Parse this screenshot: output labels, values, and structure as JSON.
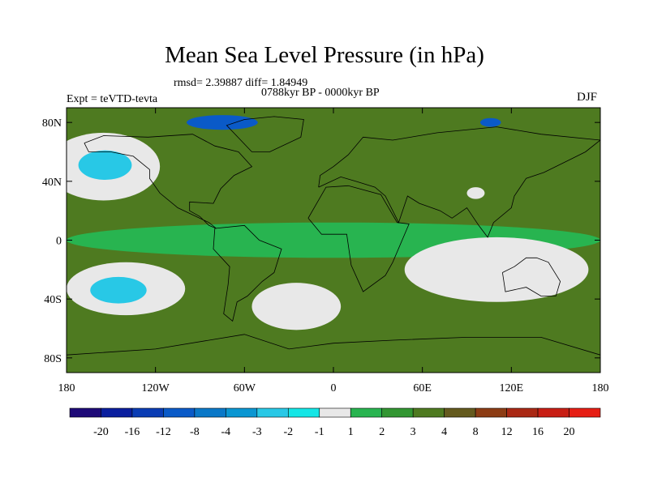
{
  "title": "Mean Sea Level Pressure (in hPa)",
  "stats_line": "rmsd= 2.39887 diff= 1.84949",
  "period_line": "0788kyr BP - 0000kyr BP",
  "expt_label": "Expt = teVTD-tevta",
  "season_label": "DJF",
  "chart_data": {
    "type": "heatmap",
    "title": "Mean Sea Level Pressure (in hPa)",
    "xlabel": "",
    "ylabel": "",
    "x_range": [
      -180,
      180
    ],
    "y_range": [
      -90,
      90
    ],
    "x_ticks": [
      {
        "value": -180,
        "label": "180"
      },
      {
        "value": -120,
        "label": "120W"
      },
      {
        "value": -60,
        "label": "60W"
      },
      {
        "value": 0,
        "label": "0"
      },
      {
        "value": 60,
        "label": "60E"
      },
      {
        "value": 120,
        "label": "120E"
      },
      {
        "value": 180,
        "label": "180"
      }
    ],
    "y_ticks": [
      {
        "value": 80,
        "label": "80N"
      },
      {
        "value": 40,
        "label": "40N"
      },
      {
        "value": 0,
        "label": "0"
      },
      {
        "value": -40,
        "label": "40S"
      },
      {
        "value": -80,
        "label": "80S"
      }
    ],
    "background_level": "3 to 4",
    "regions": [
      {
        "name": "North Pacific low",
        "lon": -155,
        "lat": 50,
        "rx": 38,
        "ry": 23,
        "level": "-1 to 1"
      },
      {
        "name": "North Pacific low core",
        "lon": -154,
        "lat": 51,
        "rx": 18,
        "ry": 10,
        "level": "-3 to -2"
      },
      {
        "name": "Greenland core",
        "lon": -75,
        "lat": 80,
        "rx": 24,
        "ry": 5,
        "level": "-12 to -8"
      },
      {
        "name": "Central Asia low",
        "lon": 96,
        "lat": 32,
        "rx": 6,
        "ry": 4,
        "level": "-1 to 1"
      },
      {
        "name": "Siberian coast low core",
        "lon": 106,
        "lat": 80,
        "rx": 7,
        "ry": 3,
        "level": "-12 to -8"
      },
      {
        "name": "South Pacific low",
        "lon": -140,
        "lat": -33,
        "rx": 40,
        "ry": 18,
        "level": "-1 to 1"
      },
      {
        "name": "South Pacific low core",
        "lon": -145,
        "lat": -34,
        "rx": 19,
        "ry": 9,
        "level": "-3 to -2"
      },
      {
        "name": "South Atlantic low",
        "lon": -25,
        "lat": -45,
        "rx": 30,
        "ry": 16,
        "level": "-1 to 1"
      },
      {
        "name": "Indian Ocean-Australia low",
        "lon": 110,
        "lat": -20,
        "rx": 62,
        "ry": 22,
        "level": "-1 to 1"
      },
      {
        "name": "Equatorial band",
        "lon": 0,
        "lat": 0,
        "rx": 180,
        "ry": 12,
        "level": "1 to 2"
      }
    ],
    "levels": [
      -20,
      -16,
      -12,
      -8,
      -4,
      -3,
      -2,
      -1,
      1,
      2,
      3,
      4,
      8,
      12,
      16,
      20
    ],
    "colors": [
      "#1e0a78",
      "#0a1e9e",
      "#0a3cb4",
      "#0a5ac8",
      "#0a78c8",
      "#0a96d2",
      "#28c8e6",
      "#14e6e6",
      "#e8e8e8",
      "#28b450",
      "#329632",
      "#4e7a20",
      "#645a1e",
      "#8c3c14",
      "#aa2814",
      "#c81e14",
      "#e61e14"
    ]
  }
}
